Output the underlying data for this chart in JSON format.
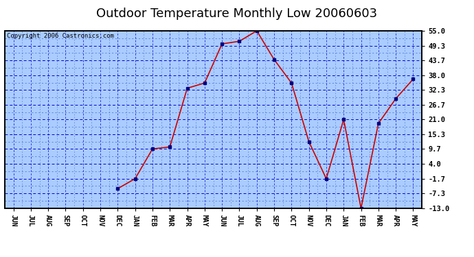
{
  "title": "Outdoor Temperature Monthly Low 20060603",
  "copyright": "Copyright 2006 Castronics.com",
  "x_labels": [
    "JUN",
    "JUL",
    "AUG",
    "SEP",
    "OCT",
    "NOV",
    "DEC",
    "JAN",
    "FEB",
    "MAR",
    "APR",
    "MAY",
    "JUN",
    "JUL",
    "AUG",
    "SEP",
    "OCT",
    "NOV",
    "DEC",
    "JAN",
    "FEB",
    "MAR",
    "APR",
    "MAY"
  ],
  "y_ticks": [
    -13.0,
    -7.3,
    -1.7,
    4.0,
    9.7,
    15.3,
    21.0,
    26.7,
    32.3,
    38.0,
    43.7,
    49.3,
    55.0
  ],
  "ylim": [
    -13.0,
    55.0
  ],
  "data_x_indices": [
    6,
    7,
    8,
    9,
    10,
    11,
    12,
    13,
    14,
    15,
    16,
    17,
    18,
    19,
    20,
    21,
    22,
    23
  ],
  "data_y_values": [
    -5.5,
    -1.7,
    9.7,
    10.5,
    33.0,
    35.0,
    50.0,
    51.0,
    55.0,
    44.0,
    35.0,
    12.5,
    -1.7,
    21.0,
    -13.0,
    19.5,
    29.0,
    36.5
  ],
  "line_color": "#cc0000",
  "marker_color": "#000080",
  "bg_color": "#aaccff",
  "title_fontsize": 13,
  "copyright_fontsize": 6.5,
  "ylabel_right_color": "#000000",
  "grid_color": "#0000cc",
  "grid_minor_color": "#4466cc"
}
